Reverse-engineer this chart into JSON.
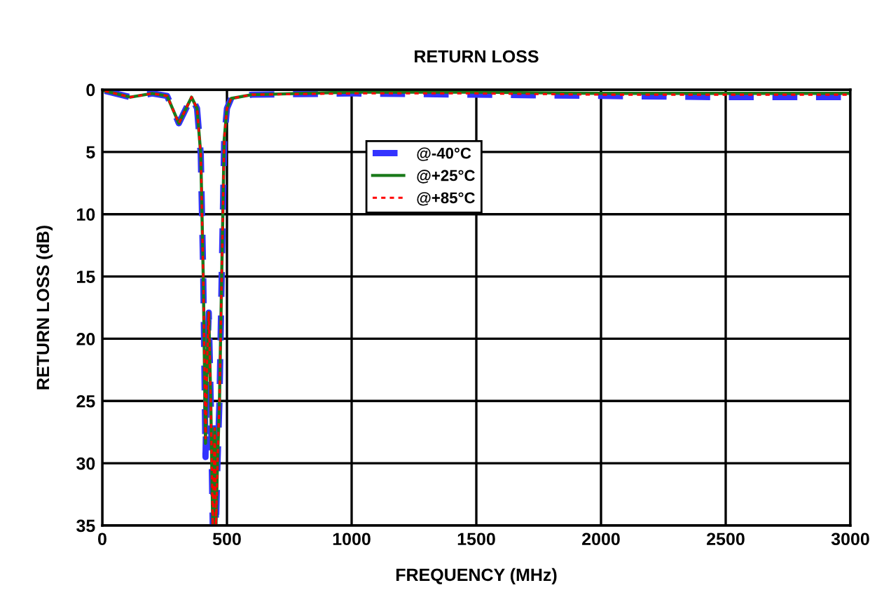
{
  "chart_data": {
    "type": "line",
    "title": "RETURN LOSS",
    "xlabel": "FREQUENCY (MHz)",
    "ylabel": "RETURN LOSS (dB)",
    "xlim": [
      0,
      3000
    ],
    "xticks": [
      0,
      500,
      1000,
      1500,
      2000,
      2500,
      3000
    ],
    "ylim": [
      35,
      0
    ],
    "yticks": [
      0,
      5,
      10,
      15,
      20,
      25,
      30,
      35
    ],
    "grid": true,
    "legend": "top",
    "marker": "none",
    "series": [
      {
        "name": "@-40°C",
        "color": "#3333ff",
        "line_style": "dashed",
        "x": [
          10,
          113,
          200,
          260,
          307,
          358,
          380,
          395,
          405,
          414,
          420,
          427,
          435,
          443,
          451,
          456,
          462,
          470,
          479,
          489,
          500,
          517,
          600,
          1000,
          1500,
          2000,
          2500,
          3000
        ],
        "values": [
          0.1,
          0.6,
          0.3,
          0.5,
          2.7,
          0.6,
          1.5,
          5.2,
          15,
          29.5,
          22,
          17.9,
          25,
          35,
          27.2,
          35,
          30,
          25,
          14.9,
          4.0,
          1.5,
          0.7,
          0.4,
          0.3,
          0.4,
          0.5,
          0.6,
          0.6
        ]
      },
      {
        "name": "@+25°C",
        "color": "#1a7a1a",
        "line_style": "solid",
        "x": [
          10,
          113,
          200,
          260,
          307,
          358,
          380,
          395,
          405,
          414,
          420,
          427,
          435,
          443,
          451,
          456,
          462,
          470,
          479,
          489,
          500,
          517,
          600,
          1000,
          1500,
          2000,
          2500,
          3000
        ],
        "values": [
          0.1,
          0.6,
          0.3,
          0.5,
          2.7,
          0.6,
          1.5,
          5.2,
          15,
          28.4,
          22,
          17.9,
          25,
          35,
          27.2,
          35,
          30,
          25,
          14.9,
          4.0,
          1.5,
          0.7,
          0.4,
          0.2,
          0.2,
          0.3,
          0.3,
          0.3
        ]
      },
      {
        "name": "@+85°C",
        "color": "#ff0000",
        "line_style": "dotted",
        "x": [
          10,
          113,
          200,
          260,
          307,
          358,
          380,
          395,
          405,
          414,
          420,
          427,
          435,
          443,
          451,
          456,
          462,
          470,
          479,
          489,
          500,
          517,
          600,
          1000,
          1500,
          2000,
          2500,
          3000
        ],
        "values": [
          0.1,
          0.6,
          0.3,
          0.5,
          2.7,
          0.6,
          1.5,
          5.2,
          15,
          28,
          22,
          17.9,
          25,
          35,
          27.2,
          35,
          30,
          25,
          14.9,
          4.0,
          1.5,
          0.7,
          0.4,
          0.3,
          0.3,
          0.4,
          0.4,
          0.4
        ]
      }
    ]
  }
}
